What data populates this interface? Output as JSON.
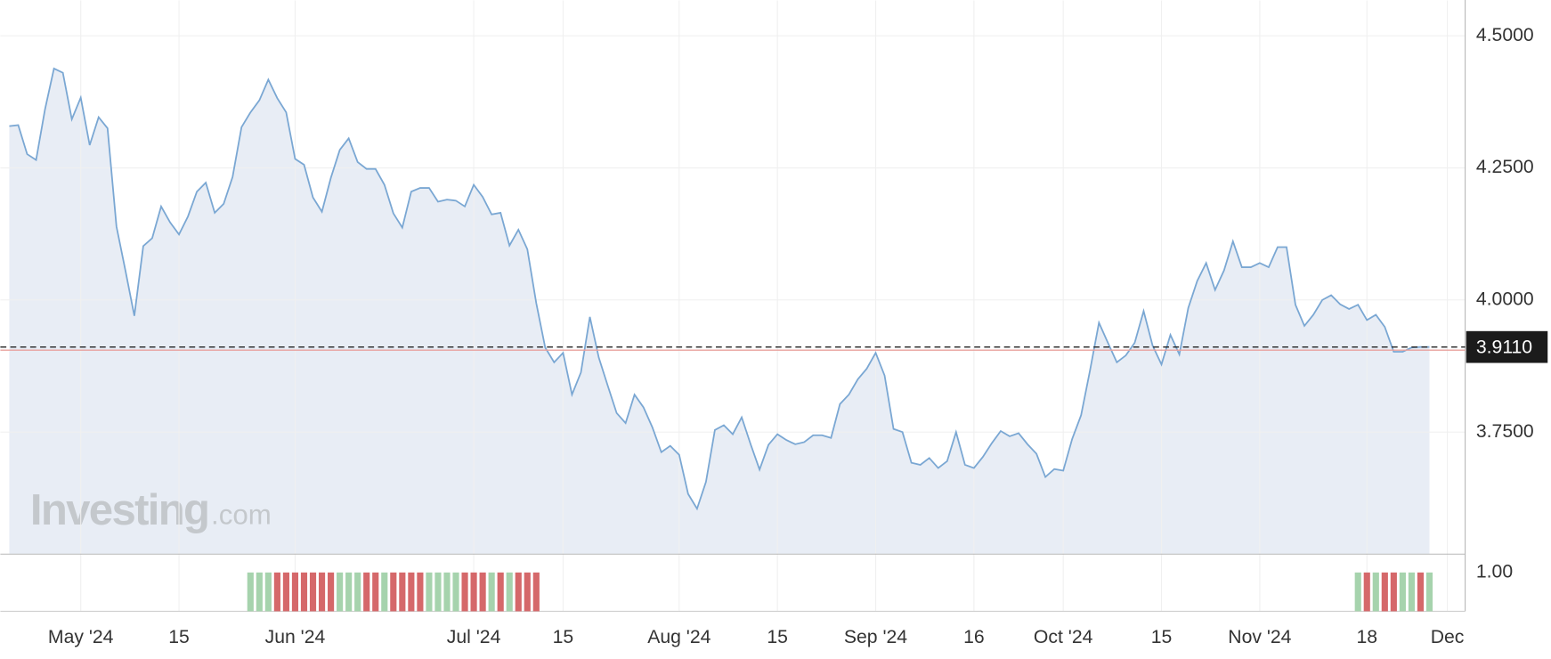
{
  "chart_data": {
    "type": "area",
    "x": [
      0,
      1,
      2,
      3,
      4,
      5,
      6,
      7,
      8,
      9,
      10,
      11,
      12,
      13,
      14,
      15,
      16,
      17,
      18,
      19,
      20,
      21,
      22,
      23,
      24,
      25,
      26,
      27,
      28,
      29,
      30,
      31,
      32,
      33,
      34,
      35,
      36,
      37,
      38,
      39,
      40,
      41,
      42,
      43,
      44,
      45,
      46,
      47,
      48,
      49,
      50,
      51,
      52,
      53,
      54,
      55,
      56,
      57,
      58,
      59,
      60,
      61,
      62,
      63,
      64,
      65,
      66,
      67,
      68,
      69,
      70,
      71,
      72,
      73,
      74,
      75,
      76,
      77,
      78,
      79,
      80,
      81,
      82,
      83,
      84,
      85,
      86,
      87,
      88,
      89,
      90,
      91,
      92,
      93,
      94,
      95,
      96,
      97,
      98,
      99,
      100,
      101,
      102,
      103,
      104,
      105,
      106,
      107,
      108,
      109,
      110,
      111,
      112,
      113,
      114,
      115,
      116,
      117,
      118,
      119,
      120,
      121,
      122,
      123,
      124,
      125,
      126,
      127,
      128,
      129,
      130,
      131,
      132,
      133,
      134,
      135,
      136,
      137,
      138,
      139,
      140,
      141,
      142,
      143,
      144,
      145,
      146,
      147,
      148,
      149,
      150,
      151,
      152,
      153,
      154,
      155,
      156,
      157,
      158,
      159
    ],
    "values": [
      4.329,
      4.331,
      4.276,
      4.265,
      4.361,
      4.438,
      4.43,
      4.342,
      4.383,
      4.293,
      4.346,
      4.325,
      4.139,
      4.056,
      3.97,
      4.102,
      4.117,
      4.177,
      4.147,
      4.124,
      4.158,
      4.205,
      4.222,
      4.165,
      4.182,
      4.233,
      4.327,
      4.355,
      4.378,
      4.417,
      4.382,
      4.355,
      4.267,
      4.256,
      4.194,
      4.167,
      4.231,
      4.284,
      4.306,
      4.261,
      4.248,
      4.248,
      4.218,
      4.164,
      4.137,
      4.205,
      4.212,
      4.212,
      4.186,
      4.19,
      4.188,
      4.177,
      4.218,
      4.195,
      4.162,
      4.165,
      4.103,
      4.133,
      4.096,
      3.994,
      3.91,
      3.882,
      3.9,
      3.821,
      3.863,
      3.968,
      3.891,
      3.838,
      3.786,
      3.767,
      3.821,
      3.797,
      3.759,
      3.712,
      3.724,
      3.707,
      3.633,
      3.605,
      3.656,
      3.754,
      3.763,
      3.746,
      3.778,
      3.727,
      3.679,
      3.726,
      3.746,
      3.735,
      3.727,
      3.731,
      3.744,
      3.744,
      3.739,
      3.803,
      3.821,
      3.85,
      3.87,
      3.9,
      3.857,
      3.756,
      3.75,
      3.692,
      3.688,
      3.701,
      3.682,
      3.695,
      3.75,
      3.688,
      3.682,
      3.703,
      3.729,
      3.752,
      3.742,
      3.748,
      3.727,
      3.709,
      3.665,
      3.68,
      3.677,
      3.737,
      3.782,
      3.867,
      3.957,
      3.919,
      3.882,
      3.895,
      3.919,
      3.979,
      3.914,
      3.878,
      3.934,
      3.897,
      3.985,
      4.036,
      4.07,
      4.019,
      4.056,
      4.111,
      4.062,
      4.062,
      4.07,
      4.062,
      4.1,
      4.1,
      3.991,
      3.951,
      3.972,
      4.0,
      4.009,
      3.992,
      3.983,
      3.991,
      3.962,
      3.972,
      3.949,
      3.902,
      3.902,
      3.91,
      3.911,
      3.911
    ],
    "line_color": "#7aa7d3",
    "fill_color": "#e8edf5",
    "xlim": [
      -1,
      163
    ],
    "xticks": [
      {
        "value": 8,
        "label": "May '24"
      },
      {
        "value": 19,
        "label": "15"
      },
      {
        "value": 32,
        "label": "Jun '24"
      },
      {
        "value": 52,
        "label": "Jul '24"
      },
      {
        "value": 62,
        "label": "15"
      },
      {
        "value": 75,
        "label": "Aug '24"
      },
      {
        "value": 86,
        "label": "15"
      },
      {
        "value": 97,
        "label": "Sep '24"
      },
      {
        "value": 108,
        "label": "16"
      },
      {
        "value": 118,
        "label": "Oct '24"
      },
      {
        "value": 129,
        "label": "15"
      },
      {
        "value": 140,
        "label": "Nov '24"
      },
      {
        "value": 152,
        "label": "18"
      },
      {
        "value": 161,
        "label": "Dec"
      }
    ],
    "ylim": [
      3.52,
      4.55
    ],
    "yticks": [
      {
        "value": 3.75,
        "label": "3.7500"
      },
      {
        "value": 4.0,
        "label": "4.0000"
      },
      {
        "value": 4.25,
        "label": "4.2500"
      },
      {
        "value": 4.5,
        "label": "4.5000"
      }
    ],
    "grid": true,
    "current_value": {
      "value": 3.911,
      "label": "3.9110"
    },
    "reference_line": {
      "value": 3.905,
      "color": "#e8a19c"
    },
    "watermark": [
      "Investing",
      ".com"
    ],
    "volume": {
      "x": [
        27,
        28,
        29,
        30,
        31,
        32,
        33,
        34,
        35,
        36,
        37,
        38,
        39,
        40,
        41,
        42,
        43,
        44,
        45,
        46,
        47,
        48,
        49,
        50,
        51,
        52,
        53,
        54,
        55,
        56,
        57,
        58,
        59,
        151,
        152,
        153,
        154,
        155,
        156,
        157,
        158,
        159
      ],
      "values": [
        1,
        1,
        1,
        1,
        1,
        1,
        1,
        1,
        1,
        1,
        1,
        1,
        1,
        1,
        1,
        1,
        1,
        1,
        1,
        1,
        1,
        1,
        1,
        1,
        1,
        1,
        1,
        1,
        1,
        1,
        1,
        1,
        1,
        1,
        1,
        1,
        1,
        1,
        1,
        1,
        1,
        1
      ],
      "colors": [
        "#a6d3ad",
        "#a6d3ad",
        "#a6d3ad",
        "#d5686a",
        "#d5686a",
        "#d5686a",
        "#d5686a",
        "#d5686a",
        "#d5686a",
        "#d5686a",
        "#a6d3ad",
        "#a6d3ad",
        "#a6d3ad",
        "#d5686a",
        "#d5686a",
        "#a6d3ad",
        "#d5686a",
        "#d5686a",
        "#d5686a",
        "#d5686a",
        "#a6d3ad",
        "#a6d3ad",
        "#a6d3ad",
        "#a6d3ad",
        "#d5686a",
        "#d5686a",
        "#d5686a",
        "#a6d3ad",
        "#d5686a",
        "#a6d3ad",
        "#d5686a",
        "#d5686a",
        "#d5686a",
        "#a6d3ad",
        "#d5686a",
        "#a6d3ad",
        "#d5686a",
        "#d5686a",
        "#a6d3ad",
        "#a6d3ad",
        "#d5686a",
        "#a6d3ad"
      ],
      "ylim": [
        0,
        1.46
      ],
      "yticks": [
        {
          "value": 1,
          "label": "1.00"
        }
      ]
    }
  }
}
